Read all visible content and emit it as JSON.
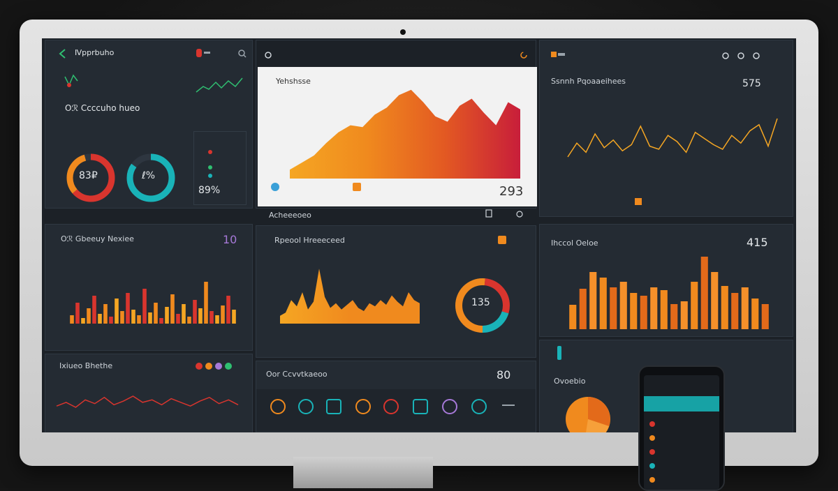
{
  "left_top": {
    "title": "Ⅳpprbuho",
    "section": "Oℛ Ccccuho hueo",
    "donut1": "83₽",
    "donut2": "ℓ%",
    "list_value": "89%"
  },
  "center_top": {
    "title": "Yehshsse",
    "footer_value": "293"
  },
  "right_top": {
    "title": "Ssnnh Pqoaaeihees",
    "value": "575"
  },
  "left_mid": {
    "title": "Oℛ Gbeeuy Nexiee",
    "value": "10"
  },
  "center_mid": {
    "title": "Rpeool Hreeeceed",
    "header": "Acheeeoeo",
    "donut": "135"
  },
  "right_mid": {
    "title": "Ihccol Oeloe",
    "value": "415"
  },
  "left_bot": {
    "title": "Ixiueo Bhethe"
  },
  "center_bot": {
    "title": "Oor Ccvvtkaeoo",
    "value": "80"
  },
  "right_bot": {
    "title": "Ovoebio"
  },
  "colors": {
    "orange": "#f08a1e",
    "red": "#d9352e",
    "teal": "#19b3b8",
    "green": "#2fbf71"
  },
  "chart_data": [
    {
      "type": "area",
      "title": "Yehshsse",
      "x": [
        1,
        2,
        3,
        4,
        5,
        6,
        7,
        8,
        9,
        10,
        11,
        12,
        13,
        14,
        15,
        16,
        17,
        18,
        19,
        20
      ],
      "values": [
        10,
        18,
        26,
        40,
        52,
        60,
        58,
        72,
        80,
        94,
        100,
        86,
        70,
        64,
        82,
        90,
        74,
        60,
        86,
        78
      ],
      "ylim": [
        0,
        110
      ]
    },
    {
      "type": "line",
      "title": "Ssnnh Pqoaaeihees",
      "x": [
        1,
        2,
        3,
        4,
        5,
        6,
        7,
        8,
        9,
        10,
        11,
        12,
        13,
        14,
        15,
        16,
        17,
        18,
        19,
        20,
        21,
        22,
        23,
        24
      ],
      "values": [
        30,
        48,
        36,
        60,
        42,
        52,
        38,
        46,
        70,
        44,
        40,
        58,
        50,
        36,
        62,
        54,
        46,
        40,
        58,
        48,
        64,
        72,
        44,
        80
      ],
      "ylim": [
        0,
        100
      ]
    },
    {
      "type": "bar",
      "title": "Oℛ Gbeeuy Nexiee",
      "values": [
        12,
        30,
        8,
        22,
        40,
        14,
        28,
        10,
        36,
        18,
        44,
        20,
        12,
        50,
        16,
        30,
        8,
        24,
        42,
        14,
        28,
        10,
        34,
        22,
        60,
        18,
        12,
        26,
        40,
        20
      ],
      "ylim": [
        0,
        70
      ]
    },
    {
      "type": "area",
      "title": "Rpeool Hreeeceed",
      "values": [
        10,
        14,
        30,
        22,
        40,
        18,
        28,
        70,
        34,
        20,
        26,
        18,
        24,
        30,
        20,
        16,
        26,
        22,
        30,
        24,
        36,
        28,
        22,
        40,
        30,
        26
      ],
      "ylim": [
        0,
        80
      ]
    },
    {
      "type": "bar",
      "title": "Ihccol Oeloe",
      "values": [
        35,
        58,
        82,
        74,
        60,
        68,
        52,
        48,
        60,
        56,
        36,
        40,
        68,
        104,
        82,
        62,
        52,
        60,
        44,
        36
      ],
      "ylim": [
        0,
        110
      ]
    },
    {
      "type": "line",
      "title": "Ixiueo Bhethe",
      "values": [
        20,
        26,
        18,
        30,
        24,
        34,
        22,
        28,
        36,
        26,
        30,
        22,
        32,
        26,
        20,
        28,
        34,
        24,
        30,
        22
      ],
      "ylim": [
        0,
        45
      ]
    }
  ]
}
